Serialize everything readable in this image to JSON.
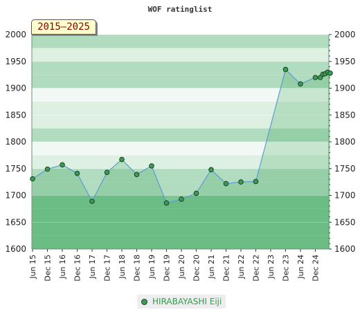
{
  "chart_data": {
    "type": "area",
    "title": "WOF ratinglist",
    "period_label": "2015–2025",
    "ylim": [
      1600,
      2000
    ],
    "y_ticks": [
      1600,
      1650,
      1700,
      1750,
      1800,
      1850,
      1900,
      1950,
      2000
    ],
    "x_tick_labels": [
      "Jun 15",
      "Dec 15",
      "Jun 16",
      "Dec 16",
      "Jun 17",
      "Dec 17",
      "Jun 18",
      "Dec 18",
      "Jun 19",
      "Dec 19",
      "Jun 20",
      "Dec 20",
      "Jun 21",
      "Dec 21",
      "Jun 22",
      "Dec 22",
      "Jun 23",
      "Dec 23",
      "Jun 24",
      "Dec 24"
    ],
    "series": [
      {
        "name": "HIRABAYASHI Eiji",
        "points": [
          {
            "x": "Jun 15",
            "y": 1731
          },
          {
            "x": "Dec 15",
            "y": 1749
          },
          {
            "x": "Jun 16",
            "y": 1757
          },
          {
            "x": "Dec 16",
            "y": 1741
          },
          {
            "x": "Jun 17",
            "y": 1689
          },
          {
            "x": "Dec 17",
            "y": 1743
          },
          {
            "x": "Jun 18",
            "y": 1767
          },
          {
            "x": "Dec 18",
            "y": 1739
          },
          {
            "x": "Jun 19",
            "y": 1755
          },
          {
            "x": "Dec 19",
            "y": 1686
          },
          {
            "x": "Jun 20",
            "y": 1693
          },
          {
            "x": "Dec 20",
            "y": 1704
          },
          {
            "x": "Jun 21",
            "y": 1748
          },
          {
            "x": "Dec 21",
            "y": 1722
          },
          {
            "x": "Jun 22",
            "y": 1725
          },
          {
            "x": "Dec 22",
            "y": 1726
          },
          {
            "x": "Dec 23",
            "y": 1935
          },
          {
            "x": "Jun 24",
            "y": 1908
          },
          {
            "x": "Dec 24",
            "y": 1920
          },
          {
            "x": "Feb 25",
            "y": 1920
          },
          {
            "x": "Mar 25",
            "y": 1926
          },
          {
            "x": "Apr 25",
            "y": 1927
          },
          {
            "x": "May 25",
            "y": 1930
          },
          {
            "x": "Jun 25",
            "y": 1928
          }
        ]
      }
    ],
    "grid": true,
    "legend_position": "bottom-center",
    "colors": {
      "line": "#5b9bd5",
      "marker_fill": "#3a9b55",
      "marker_stroke": "#1f3f25",
      "area_fill": "#2e9e4e",
      "band_dark": "#7ec695",
      "band_mid": "#b2dcc0",
      "band_light": "#ddf0e2",
      "band_lightest": "#f2f9f4",
      "legend_text": "#2e9e4e"
    }
  }
}
